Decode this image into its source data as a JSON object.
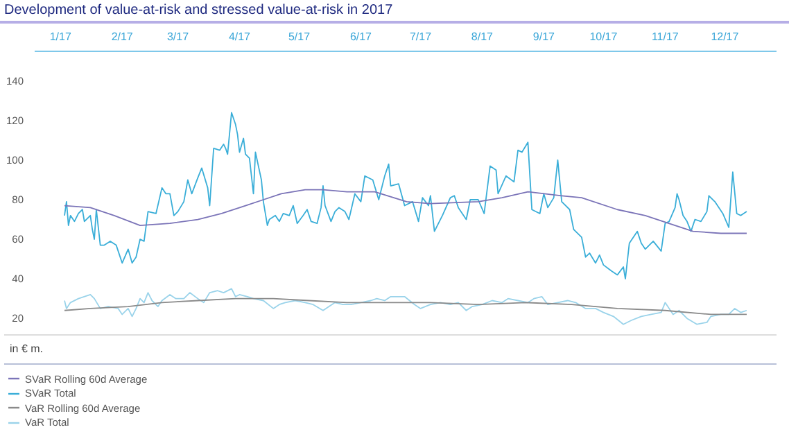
{
  "chart_data": {
    "type": "line",
    "title": "Development of value-at-risk and stressed value-at-risk in 2017",
    "ylabel": "in € m.",
    "xlim": [
      "2016-12-19",
      "2017-12-27"
    ],
    "xticks": [
      {
        "value": "2017-01-01",
        "label": "1/17"
      },
      {
        "value": "2017-02-01",
        "label": "2/17"
      },
      {
        "value": "2017-03-01",
        "label": "3/17"
      },
      {
        "value": "2017-04-01",
        "label": "4/17"
      },
      {
        "value": "2017-05-01",
        "label": "5/17"
      },
      {
        "value": "2017-06-01",
        "label": "6/17"
      },
      {
        "value": "2017-07-01",
        "label": "7/17"
      },
      {
        "value": "2017-08-01",
        "label": "8/17"
      },
      {
        "value": "2017-09-01",
        "label": "9/17"
      },
      {
        "value": "2017-10-01",
        "label": "10/17"
      },
      {
        "value": "2017-11-01",
        "label": "11/17"
      },
      {
        "value": "2017-12-01",
        "label": "12/17"
      }
    ],
    "ylim": [
      12,
      155
    ],
    "yticks": [
      20,
      40,
      60,
      80,
      100,
      120,
      140
    ],
    "grid": false,
    "legend": "bottom",
    "marker": "none",
    "line_style": "solid",
    "series": [
      {
        "name": "SVaR Total",
        "color": "#3aaed8",
        "x": [
          "2017-01-03",
          "2017-01-04",
          "2017-01-05",
          "2017-01-06",
          "2017-01-08",
          "2017-01-10",
          "2017-01-12",
          "2017-01-13",
          "2017-01-16",
          "2017-01-17",
          "2017-01-18",
          "2017-01-19",
          "2017-01-21",
          "2017-01-23",
          "2017-01-26",
          "2017-01-29",
          "2017-02-01",
          "2017-02-04",
          "2017-02-06",
          "2017-02-08",
          "2017-02-10",
          "2017-02-12",
          "2017-02-14",
          "2017-02-18",
          "2017-02-21",
          "2017-02-23",
          "2017-02-25",
          "2017-02-27",
          "2017-03-01",
          "2017-03-04",
          "2017-03-06",
          "2017-03-08",
          "2017-03-11",
          "2017-03-13",
          "2017-03-16",
          "2017-03-17",
          "2017-03-19",
          "2017-03-22",
          "2017-03-24",
          "2017-03-25",
          "2017-03-26",
          "2017-03-28",
          "2017-03-30",
          "2017-03-31",
          "2017-04-01",
          "2017-04-03",
          "2017-04-04",
          "2017-04-06",
          "2017-04-08",
          "2017-04-09",
          "2017-04-12",
          "2017-04-13",
          "2017-04-15",
          "2017-04-16",
          "2017-04-19",
          "2017-04-21",
          "2017-04-23",
          "2017-04-26",
          "2017-04-28",
          "2017-04-30",
          "2017-05-03",
          "2017-05-05",
          "2017-05-07",
          "2017-05-10",
          "2017-05-12",
          "2017-05-13",
          "2017-05-14",
          "2017-05-17",
          "2017-05-19",
          "2017-05-21",
          "2017-05-24",
          "2017-05-26",
          "2017-05-29",
          "2017-06-01",
          "2017-06-03",
          "2017-06-07",
          "2017-06-10",
          "2017-06-13",
          "2017-06-15",
          "2017-06-16",
          "2017-06-20",
          "2017-06-23",
          "2017-06-27",
          "2017-06-30",
          "2017-07-02",
          "2017-07-05",
          "2017-07-06",
          "2017-07-08",
          "2017-07-12",
          "2017-07-16",
          "2017-07-18",
          "2017-07-20",
          "2017-07-24",
          "2017-07-26",
          "2017-07-30",
          "2017-08-02",
          "2017-08-05",
          "2017-08-08",
          "2017-08-09",
          "2017-08-13",
          "2017-08-17",
          "2017-08-19",
          "2017-08-21",
          "2017-08-24",
          "2017-08-26",
          "2017-08-30",
          "2017-09-01",
          "2017-09-03",
          "2017-09-06",
          "2017-09-08",
          "2017-09-10",
          "2017-09-14",
          "2017-09-16",
          "2017-09-20",
          "2017-09-22",
          "2017-09-24",
          "2017-09-27",
          "2017-09-29",
          "2017-10-01",
          "2017-10-05",
          "2017-10-08",
          "2017-10-11",
          "2017-10-12",
          "2017-10-14",
          "2017-10-18",
          "2017-10-20",
          "2017-10-22",
          "2017-10-26",
          "2017-10-30",
          "2017-11-01",
          "2017-11-03",
          "2017-11-06",
          "2017-11-07",
          "2017-11-08",
          "2017-11-10",
          "2017-11-12",
          "2017-11-14",
          "2017-11-16",
          "2017-11-19",
          "2017-11-22",
          "2017-11-23",
          "2017-11-26",
          "2017-11-30",
          "2017-12-03",
          "2017-12-05",
          "2017-12-07",
          "2017-12-09",
          "2017-12-12"
        ],
        "values": [
          72,
          79,
          67,
          72,
          69,
          73,
          75,
          69,
          72,
          65,
          60,
          75,
          57,
          57,
          59,
          57,
          48,
          55,
          48,
          51,
          60,
          59,
          74,
          73,
          86,
          83,
          83,
          72,
          74,
          79,
          90,
          83,
          91,
          96,
          86,
          77,
          106,
          105,
          108,
          106,
          103,
          124,
          118,
          113,
          104,
          111,
          103,
          101,
          83,
          104,
          90,
          79,
          67,
          70,
          72,
          69,
          73,
          72,
          77,
          68,
          72,
          75,
          69,
          68,
          76,
          87,
          77,
          69,
          74,
          76,
          74,
          70,
          83,
          79,
          92,
          90,
          80,
          92,
          98,
          87,
          88,
          77,
          79,
          69,
          81,
          77,
          82,
          64,
          72,
          81,
          82,
          76,
          70,
          80,
          80,
          73,
          97,
          95,
          83,
          92,
          89,
          105,
          104,
          109,
          75,
          73,
          83,
          76,
          81,
          100,
          79,
          75,
          65,
          61,
          51,
          53,
          48,
          52,
          47,
          44,
          42,
          46,
          40,
          58,
          64,
          58,
          55,
          59,
          54,
          68,
          69,
          76,
          83,
          80,
          72,
          69,
          64,
          70,
          69,
          74,
          82,
          79,
          73,
          66,
          94,
          73,
          72,
          74
        ]
      },
      {
        "name": "SVaR Rolling 60d Average",
        "color": "#7b74b8",
        "x": [
          "2017-01-03",
          "2017-01-16",
          "2017-01-28",
          "2017-02-10",
          "2017-02-25",
          "2017-03-11",
          "2017-03-23",
          "2017-04-04",
          "2017-04-13",
          "2017-04-22",
          "2017-05-04",
          "2017-05-13",
          "2017-05-25",
          "2017-06-08",
          "2017-06-24",
          "2017-07-06",
          "2017-07-30",
          "2017-08-11",
          "2017-08-24",
          "2017-09-10",
          "2017-09-20",
          "2017-10-08",
          "2017-10-22",
          "2017-11-06",
          "2017-11-15",
          "2017-11-29",
          "2017-12-12"
        ],
        "values": [
          77,
          76,
          72,
          67,
          68,
          70,
          73,
          77,
          80,
          83,
          85,
          85,
          84,
          84,
          79,
          78,
          79,
          81,
          84,
          82,
          81,
          75,
          72,
          67,
          64,
          63,
          63
        ]
      },
      {
        "name": "VaR Total",
        "color": "#9ad3ea",
        "x": [
          "2017-01-03",
          "2017-01-04",
          "2017-01-06",
          "2017-01-10",
          "2017-01-16",
          "2017-01-18",
          "2017-01-21",
          "2017-01-25",
          "2017-01-30",
          "2017-02-01",
          "2017-02-04",
          "2017-02-06",
          "2017-02-08",
          "2017-02-10",
          "2017-02-12",
          "2017-02-14",
          "2017-02-16",
          "2017-02-19",
          "2017-02-21",
          "2017-02-25",
          "2017-02-28",
          "2017-03-04",
          "2017-03-07",
          "2017-03-11",
          "2017-03-14",
          "2017-03-17",
          "2017-03-21",
          "2017-03-24",
          "2017-03-28",
          "2017-03-30",
          "2017-04-01",
          "2017-04-05",
          "2017-04-08",
          "2017-04-13",
          "2017-04-18",
          "2017-04-21",
          "2017-04-24",
          "2017-04-29",
          "2017-05-04",
          "2017-05-08",
          "2017-05-13",
          "2017-05-16",
          "2017-05-19",
          "2017-05-23",
          "2017-05-27",
          "2017-06-01",
          "2017-06-06",
          "2017-06-09",
          "2017-06-13",
          "2017-06-16",
          "2017-06-23",
          "2017-06-28",
          "2017-07-01",
          "2017-07-06",
          "2017-07-11",
          "2017-07-16",
          "2017-07-20",
          "2017-07-24",
          "2017-07-27",
          "2017-08-01",
          "2017-08-06",
          "2017-08-11",
          "2017-08-14",
          "2017-08-19",
          "2017-08-24",
          "2017-08-27",
          "2017-08-31",
          "2017-09-03",
          "2017-09-08",
          "2017-09-13",
          "2017-09-17",
          "2017-09-22",
          "2017-09-27",
          "2017-10-01",
          "2017-10-06",
          "2017-10-11",
          "2017-10-15",
          "2017-10-20",
          "2017-10-25",
          "2017-10-30",
          "2017-11-01",
          "2017-11-05",
          "2017-11-08",
          "2017-11-12",
          "2017-11-17",
          "2017-11-22",
          "2017-11-24",
          "2017-11-29",
          "2017-12-03",
          "2017-12-06",
          "2017-12-09",
          "2017-12-12"
        ],
        "values": [
          29,
          25,
          28,
          30,
          32,
          30,
          25,
          26,
          25,
          22,
          25,
          21,
          25,
          30,
          28,
          33,
          29,
          26,
          29,
          32,
          30,
          30,
          33,
          30,
          28,
          33,
          34,
          33,
          35,
          31,
          32,
          31,
          30,
          29,
          25,
          27,
          28,
          29,
          28,
          27,
          24,
          26,
          28,
          27,
          27,
          28,
          29,
          30,
          29,
          31,
          31,
          27,
          25,
          27,
          28,
          27,
          28,
          24,
          26,
          27,
          29,
          28,
          30,
          29,
          28,
          30,
          31,
          27,
          28,
          29,
          28,
          25,
          25,
          23,
          21,
          17,
          19,
          21,
          22,
          23,
          28,
          22,
          24,
          20,
          17,
          18,
          21,
          22,
          22,
          25,
          23,
          24
        ]
      },
      {
        "name": "VaR Rolling 60d Average",
        "color": "#8a8a8a",
        "x": [
          "2017-01-03",
          "2017-01-16",
          "2017-02-04",
          "2017-02-21",
          "2017-03-11",
          "2017-03-30",
          "2017-04-18",
          "2017-05-06",
          "2017-05-25",
          "2017-06-20",
          "2017-07-06",
          "2017-07-30",
          "2017-08-23",
          "2017-09-15",
          "2017-10-08",
          "2017-11-01",
          "2017-11-24",
          "2017-12-12"
        ],
        "values": [
          24,
          25,
          26,
          28,
          29,
          30,
          30,
          29,
          28,
          28,
          28,
          27,
          28,
          27,
          25,
          24,
          22,
          22
        ]
      }
    ]
  }
}
